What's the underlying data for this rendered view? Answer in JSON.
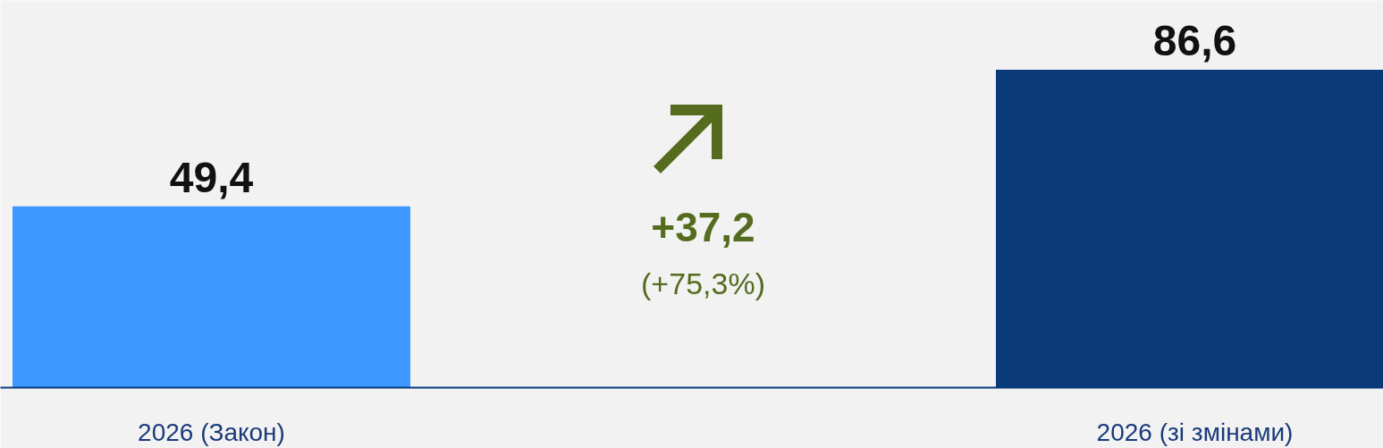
{
  "chart_data": {
    "type": "bar",
    "categories": [
      "2026 (Закон)",
      null,
      "2026 (зі змінами)"
    ],
    "values": [
      49.4,
      null,
      86.6
    ],
    "colors": [
      "#3d98ff",
      null,
      "#0a3a7a"
    ],
    "value_labels": [
      "49,4",
      null,
      "86,6"
    ],
    "annotations": [
      "+37,2",
      "(+75,3%)"
    ]
  }
}
